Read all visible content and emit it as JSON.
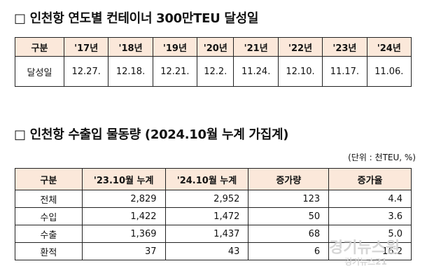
{
  "section1": {
    "title": "□ 인천항 연도별 컨테이너 300만TEU 달성일",
    "table": {
      "header_label": "구분",
      "years": [
        "'17년",
        "'18년",
        "'19년",
        "'20년",
        "'21년",
        "'22년",
        "'23년",
        "'24년"
      ],
      "row_label": "달성일",
      "dates": [
        "12.27.",
        "12.18.",
        "12.21.",
        "12.2.",
        "11.24.",
        "12.10.",
        "11.17.",
        "11.06."
      ]
    }
  },
  "section2": {
    "title": "□ 인천항 수출입 물동량 (2024.10월 누계 가집계)",
    "unit": "(단위 : 천TEU, %)",
    "headers": [
      "구분",
      "'23.10월 누계",
      "'24.10월 누계",
      "증가량",
      "증가율"
    ],
    "rows": [
      {
        "label": "전체",
        "y2023": "2,829",
        "y2024": "2,952",
        "increase": "123",
        "rate": "4.4"
      },
      {
        "label": "수입",
        "y2023": "1,422",
        "y2024": "1,472",
        "increase": "50",
        "rate": "3.6"
      },
      {
        "label": "수출",
        "y2023": "1,369",
        "y2024": "1,437",
        "increase": "68",
        "rate": "5.0"
      },
      {
        "label": "환적",
        "y2023": "37",
        "y2024": "43",
        "increase": "6",
        "rate": "16.2"
      }
    ]
  },
  "watermark": {
    "main": "경기뉴스원",
    "sub": "경기뉴스21"
  }
}
